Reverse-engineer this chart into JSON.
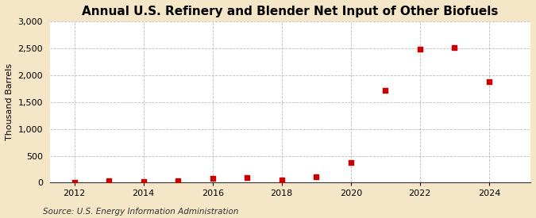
{
  "title": "Annual U.S. Refinery and Blender Net Input of Other Biofuels",
  "ylabel": "Thousand Barrels",
  "source": "Source: U.S. Energy Information Administration",
  "figure_bg_color": "#f5e6c8",
  "axes_bg_color": "#ffffff",
  "years": [
    2012,
    2013,
    2014,
    2015,
    2016,
    2017,
    2018,
    2019,
    2020,
    2021,
    2022,
    2023,
    2024
  ],
  "values": [
    5,
    30,
    15,
    35,
    75,
    100,
    45,
    110,
    380,
    1720,
    2490,
    2520,
    1880
  ],
  "marker_color": "#cc0000",
  "marker": "s",
  "marker_size": 4,
  "ylim": [
    0,
    3000
  ],
  "yticks": [
    0,
    500,
    1000,
    1500,
    2000,
    2500,
    3000
  ],
  "xlim": [
    2011.3,
    2025.2
  ],
  "xticks": [
    2012,
    2014,
    2016,
    2018,
    2020,
    2022,
    2024
  ],
  "grid_color": "#aaaaaa",
  "grid_linestyle": "--",
  "grid_alpha": 0.8,
  "grid_linewidth": 0.6,
  "title_fontsize": 11,
  "ylabel_fontsize": 8,
  "tick_fontsize": 8,
  "source_fontsize": 7.5
}
